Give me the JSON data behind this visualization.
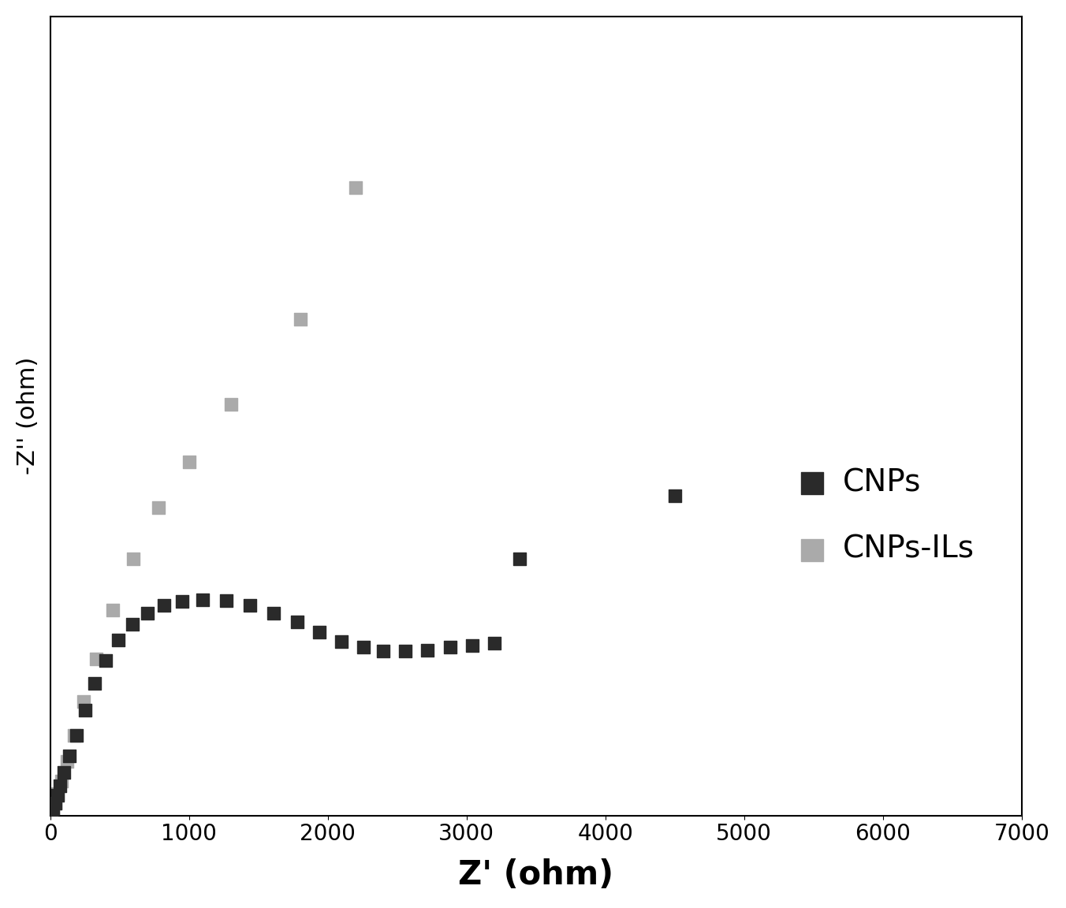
{
  "CNPs_x": [
    10,
    20,
    35,
    50,
    70,
    100,
    140,
    190,
    250,
    320,
    400,
    490,
    590,
    700,
    820,
    950,
    1100,
    1270,
    1440,
    1610,
    1780,
    1940,
    2100,
    2260,
    2400,
    2560,
    2720,
    2880,
    3040,
    3200,
    3380,
    4500
  ],
  "CNPs_y": [
    5,
    12,
    22,
    35,
    52,
    75,
    105,
    140,
    185,
    232,
    272,
    308,
    335,
    355,
    368,
    375,
    378,
    376,
    368,
    355,
    340,
    322,
    305,
    295,
    288,
    288,
    290,
    295,
    298,
    302,
    450,
    560
  ],
  "CNPsILs_x": [
    10,
    20,
    35,
    55,
    80,
    120,
    170,
    240,
    330,
    450,
    600,
    780,
    1000,
    1300,
    1800,
    2200
  ],
  "CNPsILs_y": [
    5,
    12,
    22,
    38,
    60,
    95,
    140,
    200,
    275,
    360,
    450,
    540,
    620,
    720,
    870,
    1100
  ],
  "CNPs_color": "#2a2a2a",
  "CNPsILs_color": "#aaaaaa",
  "xlabel": "Z' (ohm)",
  "ylabel": "-Z'' (ohm)",
  "xlim": [
    0,
    7000
  ],
  "ylim": [
    0,
    1400
  ],
  "xticks": [
    0,
    1000,
    2000,
    3000,
    4000,
    5000,
    6000,
    7000
  ],
  "legend_CNPs": "CNPs",
  "legend_CNPsILs": "CNPs-ILs",
  "marker_size": 130,
  "xlabel_fontsize": 30,
  "ylabel_fontsize": 22,
  "tick_fontsize": 20,
  "legend_fontsize": 28,
  "background_color": "#ffffff"
}
